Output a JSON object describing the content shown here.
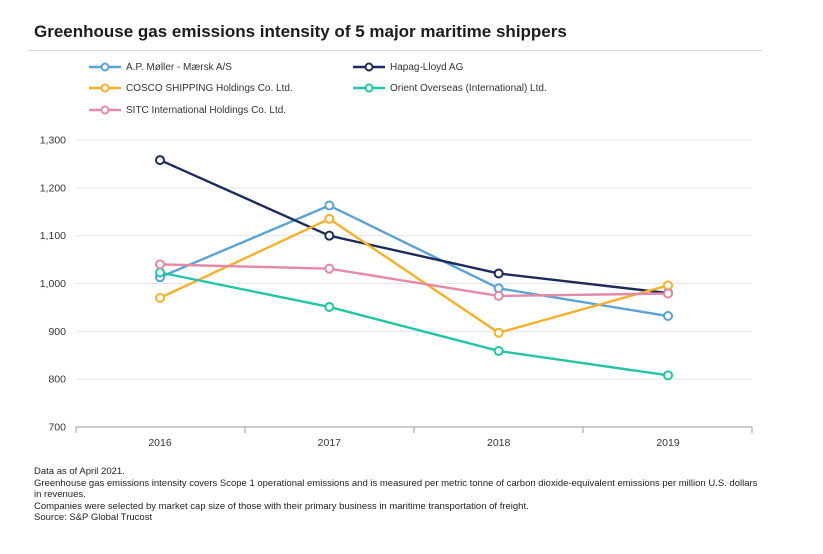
{
  "header": {
    "title": "Greenhouse gas emissions intensity of 5 major maritime shippers"
  },
  "chart_data": {
    "type": "line",
    "title": "Greenhouse gas emissions intensity of 5 major maritime shippers",
    "xlabel": "",
    "ylabel": "",
    "x": [
      "2016",
      "2017",
      "2018",
      "2019"
    ],
    "ylim": [
      700,
      1300
    ],
    "yticks": [
      700,
      800,
      900,
      1000,
      1100,
      1200,
      1300
    ],
    "ytick_labels": [
      "700",
      "800",
      "900",
      "1,000",
      "1,100",
      "1,200",
      "1,300"
    ],
    "grid": true,
    "legend_position": "top",
    "series": [
      {
        "name": "A.P. Møller - Mærsk A/S",
        "color": "#5aa3d3",
        "values": [
          1013,
          1163,
          990,
          932
        ]
      },
      {
        "name": "Hapag-Lloyd AG",
        "color": "#1d2b5a",
        "values": [
          1258,
          1100,
          1021,
          980
        ]
      },
      {
        "name": "COSCO SHIPPING Holdings Co. Ltd.",
        "color": "#f5b02e",
        "values": [
          970,
          1135,
          897,
          996
        ]
      },
      {
        "name": "Orient Overseas (International) Ltd.",
        "color": "#24c4a6",
        "values": [
          1023,
          951,
          859,
          808
        ]
      },
      {
        "name": "SITC International Holdings Co. Ltd.",
        "color": "#e48aa8",
        "values": [
          1040,
          1031,
          974,
          979
        ]
      }
    ]
  },
  "footnotes": {
    "line1": "Data as of April 2021.",
    "line2": "Greenhouse gas emissions intensity covers Scope 1 operational emissions and is measured per metric tonne of carbon dioxide-equivalent emissions per million U.S. dollars in revenues.",
    "line3": "Companies were selected by market cap size of those with their primary business in maritime transportation of freight.",
    "line4": "Source: S&P Global Trucost"
  }
}
